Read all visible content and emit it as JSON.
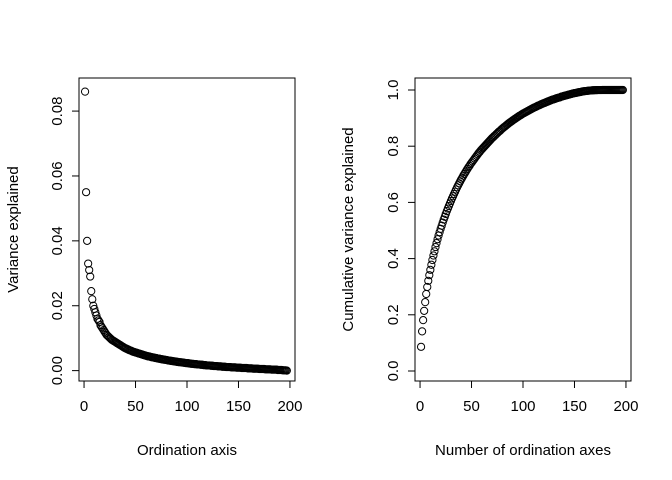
{
  "chart_data": [
    {
      "type": "scatter",
      "x_label": "Ordination axis",
      "y_label": "Variance explained",
      "x": [
        1,
        2,
        3,
        4,
        5,
        6,
        7,
        8,
        9,
        10,
        11,
        12,
        13,
        14,
        15,
        16,
        17,
        18,
        19,
        20,
        21,
        22,
        23,
        24,
        25,
        26,
        27,
        28,
        29,
        30,
        31,
        32,
        33,
        34,
        35,
        36,
        37,
        38,
        39,
        40,
        41,
        42,
        43,
        44,
        45,
        46,
        47,
        48,
        49,
        50,
        51,
        52,
        53,
        54,
        55,
        56,
        57,
        58,
        59,
        60,
        61,
        62,
        63,
        64,
        65,
        66,
        67,
        68,
        69,
        70,
        71,
        72,
        73,
        74,
        75,
        76,
        77,
        78,
        79,
        80,
        81,
        82,
        83,
        84,
        85,
        86,
        87,
        88,
        89,
        90,
        91,
        92,
        93,
        94,
        95,
        96,
        97,
        98,
        99,
        100,
        101,
        102,
        103,
        104,
        105,
        106,
        107,
        108,
        109,
        110,
        111,
        112,
        113,
        114,
        115,
        116,
        117,
        118,
        119,
        120,
        121,
        122,
        123,
        124,
        125,
        126,
        127,
        128,
        129,
        130,
        131,
        132,
        133,
        134,
        135,
        136,
        137,
        138,
        139,
        140,
        141,
        142,
        143,
        144,
        145,
        146,
        147,
        148,
        149,
        150,
        151,
        152,
        153,
        154,
        155,
        156,
        157,
        158,
        159,
        160,
        161,
        162,
        163,
        164,
        165,
        166,
        167,
        168,
        169,
        170,
        171,
        172,
        173,
        174,
        175,
        176,
        177,
        178,
        179,
        180,
        181,
        182,
        183,
        184,
        185,
        186,
        187,
        188,
        189,
        190,
        191,
        192,
        193,
        194,
        195,
        196,
        197
      ],
      "values": [
        0.086,
        0.055,
        0.04,
        0.033,
        0.031,
        0.029,
        0.0245,
        0.022,
        0.02,
        0.019,
        0.018,
        0.017,
        0.016,
        0.0155,
        0.015,
        0.014,
        0.0135,
        0.013,
        0.0125,
        0.012,
        0.0115,
        0.011,
        0.0107,
        0.0104,
        0.0101,
        0.0098,
        0.0095,
        0.0093,
        0.0091,
        0.0089,
        0.0087,
        0.0085,
        0.0083,
        0.0081,
        0.0079,
        0.0077,
        0.0075,
        0.0073,
        0.0071,
        0.0069,
        0.0068,
        0.0066,
        0.0065,
        0.0063,
        0.0062,
        0.0061,
        0.0059,
        0.0058,
        0.0057,
        0.0056,
        0.0055,
        0.0054,
        0.0053,
        0.0052,
        0.0051,
        0.005,
        0.0049,
        0.0048,
        0.0047,
        0.0046,
        0.0045,
        0.0044,
        0.0044,
        0.0043,
        0.0042,
        0.0041,
        0.0041,
        0.004,
        0.0039,
        0.0039,
        0.0038,
        0.0037,
        0.0037,
        0.0036,
        0.0035,
        0.0035,
        0.0034,
        0.0034,
        0.0033,
        0.0033,
        0.0032,
        0.0031,
        0.0031,
        0.003,
        0.003,
        0.0029,
        0.0029,
        0.0028,
        0.0028,
        0.0027,
        0.0027,
        0.0026,
        0.0026,
        0.0026,
        0.0025,
        0.0025,
        0.0024,
        0.0024,
        0.0023,
        0.0023,
        0.0023,
        0.0022,
        0.0022,
        0.0021,
        0.0021,
        0.0021,
        0.002,
        0.002,
        0.002,
        0.0019,
        0.0019,
        0.0019,
        0.0018,
        0.0018,
        0.0018,
        0.0017,
        0.0017,
        0.0017,
        0.0016,
        0.0016,
        0.0016,
        0.0016,
        0.0015,
        0.0015,
        0.0015,
        0.0014,
        0.0014,
        0.0014,
        0.0014,
        0.0013,
        0.0013,
        0.0013,
        0.0013,
        0.0012,
        0.0012,
        0.0012,
        0.0012,
        0.0011,
        0.0011,
        0.0011,
        0.0011,
        0.0011,
        0.001,
        0.001,
        0.001,
        0.001,
        0.001,
        0.0009,
        0.0009,
        0.0009,
        0.0009,
        0.0009,
        0.0008,
        0.0008,
        0.0008,
        0.0008,
        0.0008,
        0.0008,
        0.0007,
        0.0007,
        0.0007,
        0.0007,
        0.0007,
        0.0006,
        0.0006,
        0.0006,
        0.0006,
        0.0006,
        0.0006,
        0.0005,
        0.0005,
        0.0005,
        0.0005,
        0.0005,
        0.0005,
        0.0004,
        0.0004,
        0.0004,
        0.0004,
        0.0004,
        0.0004,
        0.0003,
        0.0003,
        0.0003,
        0.0003,
        0.0003,
        0.0003,
        0.0002,
        0.0002,
        0.0002,
        0.0002,
        0.0002,
        0.0001,
        0.0001,
        0.0001,
        0.0001,
        0
      ],
      "color": "#000000",
      "xlim": [
        -4.9,
        204.9
      ],
      "xticks": [
        0,
        50,
        100,
        150,
        200
      ],
      "ylim": [
        -0.0032,
        0.0902
      ],
      "yticks": [
        {
          "value": 0,
          "label": "0.00"
        },
        {
          "value": 0.02,
          "label": "0.02"
        },
        {
          "value": 0.04,
          "label": "0.04"
        },
        {
          "value": 0.06,
          "label": "0.06"
        },
        {
          "value": 0.08,
          "label": "0.08"
        }
      ]
    },
    {
      "type": "scatter",
      "x_label": "Number of ordination axes",
      "y_label": "Cumulative variance explained",
      "x": [
        1,
        2,
        3,
        4,
        5,
        6,
        7,
        8,
        9,
        10,
        11,
        12,
        13,
        14,
        15,
        16,
        17,
        18,
        19,
        20,
        21,
        22,
        23,
        24,
        25,
        26,
        27,
        28,
        29,
        30,
        31,
        32,
        33,
        34,
        35,
        36,
        37,
        38,
        39,
        40,
        41,
        42,
        43,
        44,
        45,
        46,
        47,
        48,
        49,
        50,
        51,
        52,
        53,
        54,
        55,
        56,
        57,
        58,
        59,
        60,
        61,
        62,
        63,
        64,
        65,
        66,
        67,
        68,
        69,
        70,
        71,
        72,
        73,
        74,
        75,
        76,
        77,
        78,
        79,
        80,
        81,
        82,
        83,
        84,
        85,
        86,
        87,
        88,
        89,
        90,
        91,
        92,
        93,
        94,
        95,
        96,
        97,
        98,
        99,
        100,
        101,
        102,
        103,
        104,
        105,
        106,
        107,
        108,
        109,
        110,
        111,
        112,
        113,
        114,
        115,
        116,
        117,
        118,
        119,
        120,
        121,
        122,
        123,
        124,
        125,
        126,
        127,
        128,
        129,
        130,
        131,
        132,
        133,
        134,
        135,
        136,
        137,
        138,
        139,
        140,
        141,
        142,
        143,
        144,
        145,
        146,
        147,
        148,
        149,
        150,
        151,
        152,
        153,
        154,
        155,
        156,
        157,
        158,
        159,
        160,
        161,
        162,
        163,
        164,
        165,
        166,
        167,
        168,
        169,
        170,
        171,
        172,
        173,
        174,
        175,
        176,
        177,
        178,
        179,
        180,
        181,
        182,
        183,
        184,
        185,
        186,
        187,
        188,
        189,
        190,
        191,
        192,
        193,
        194,
        195,
        196,
        197
      ],
      "values": [
        0.086,
        0.141,
        0.181,
        0.214,
        0.245,
        0.274,
        0.299,
        0.321,
        0.341,
        0.36,
        0.378,
        0.395,
        0.411,
        0.426,
        0.441,
        0.455,
        0.469,
        0.482,
        0.494,
        0.506,
        0.517,
        0.528,
        0.539,
        0.549,
        0.559,
        0.569,
        0.578,
        0.587,
        0.596,
        0.605,
        0.614,
        0.622,
        0.63,
        0.638,
        0.646,
        0.654,
        0.661,
        0.668,
        0.675,
        0.682,
        0.688,
        0.695,
        0.701,
        0.707,
        0.713,
        0.719,
        0.725,
        0.73,
        0.736,
        0.741,
        0.746,
        0.751,
        0.756,
        0.761,
        0.766,
        0.771,
        0.776,
        0.78,
        0.785,
        0.789,
        0.793,
        0.797,
        0.801,
        0.805,
        0.809,
        0.813,
        0.817,
        0.821,
        0.825,
        0.829,
        0.832,
        0.836,
        0.839,
        0.843,
        0.846,
        0.85,
        0.853,
        0.856,
        0.86,
        0.863,
        0.866,
        0.869,
        0.872,
        0.875,
        0.878,
        0.881,
        0.884,
        0.886,
        0.889,
        0.892,
        0.894,
        0.897,
        0.899,
        0.902,
        0.904,
        0.907,
        0.909,
        0.911,
        0.914,
        0.916,
        0.918,
        0.92,
        0.922,
        0.924,
        0.926,
        0.928,
        0.93,
        0.932,
        0.934,
        0.936,
        0.938,
        0.939,
        0.941,
        0.943,
        0.945,
        0.946,
        0.948,
        0.95,
        0.951,
        0.953,
        0.954,
        0.956,
        0.957,
        0.959,
        0.96,
        0.962,
        0.963,
        0.965,
        0.966,
        0.967,
        0.968,
        0.97,
        0.971,
        0.972,
        0.973,
        0.974,
        0.976,
        0.977,
        0.978,
        0.979,
        0.98,
        0.981,
        0.982,
        0.983,
        0.984,
        0.985,
        0.986,
        0.987,
        0.988,
        0.989,
        0.9893,
        0.99,
        0.991,
        0.992,
        0.9924,
        0.993,
        0.994,
        0.995,
        0.9953,
        0.996,
        0.9962,
        0.9967,
        0.9972,
        0.9976,
        0.998,
        0.9984,
        0.9987,
        0.999,
        0.9992,
        0.9994,
        0.9995,
        0.9996,
        0.9997,
        0.99973,
        0.9998,
        0.99983,
        0.9999,
        0.99992,
        0.99995,
        0.99997,
        1,
        1,
        1,
        1,
        1,
        1,
        1,
        1,
        1,
        1,
        1,
        1,
        1,
        1,
        1,
        1,
        1
      ],
      "color": "#000000",
      "xlim": [
        -4.9,
        204.9
      ],
      "xticks": [
        0,
        50,
        100,
        150,
        200
      ],
      "ylim": [
        -0.0356,
        1.0427
      ],
      "yticks": [
        {
          "value": 0,
          "label": "0.0"
        },
        0.2,
        0.4,
        0.6,
        0.8,
        {
          "value": 1,
          "label": "1.0"
        }
      ]
    }
  ]
}
